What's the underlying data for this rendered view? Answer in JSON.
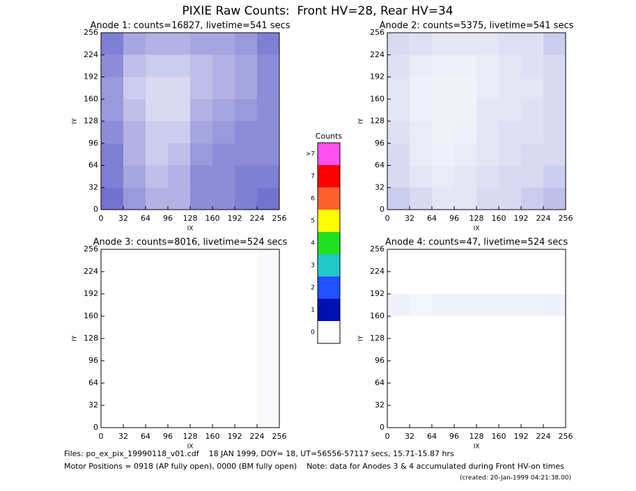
{
  "title": "PIXIE Raw Counts:  Front HV=28, Rear HV=34",
  "chart_data": [
    {
      "type": "heatmap",
      "title": "Anode 1: counts=16827, livetime=541 secs",
      "x_label": "IX",
      "y_label": "IY",
      "color": "#0000a8",
      "xlim": [
        0,
        256
      ],
      "ylim": [
        0,
        256
      ],
      "xticks": [
        0,
        32,
        64,
        96,
        128,
        160,
        192,
        224,
        256
      ],
      "yticks": [
        0,
        32,
        64,
        96,
        128,
        160,
        192,
        224,
        256
      ],
      "z": [
        [
          0.55,
          0.4,
          0.3,
          0.3,
          0.45,
          0.45,
          0.5,
          0.55
        ],
        [
          0.5,
          0.35,
          0.25,
          0.3,
          0.45,
          0.45,
          0.5,
          0.5
        ],
        [
          0.5,
          0.3,
          0.2,
          0.25,
          0.4,
          0.45,
          0.45,
          0.45
        ],
        [
          0.45,
          0.3,
          0.2,
          0.2,
          0.35,
          0.4,
          0.45,
          0.45
        ],
        [
          0.4,
          0.25,
          0.15,
          0.15,
          0.3,
          0.35,
          0.4,
          0.45
        ],
        [
          0.4,
          0.2,
          0.15,
          0.15,
          0.25,
          0.3,
          0.35,
          0.45
        ],
        [
          0.45,
          0.25,
          0.2,
          0.2,
          0.25,
          0.3,
          0.35,
          0.45
        ],
        [
          0.5,
          0.35,
          0.3,
          0.3,
          0.35,
          0.35,
          0.4,
          0.5
        ]
      ]
    },
    {
      "type": "heatmap",
      "title": "Anode 2: counts=5375, livetime=541 secs",
      "x_label": "IX",
      "y_label": "IY",
      "color": "#0000a8",
      "xlim": [
        0,
        256
      ],
      "ylim": [
        0,
        256
      ],
      "xticks": [
        0,
        32,
        64,
        96,
        128,
        160,
        192,
        224,
        256
      ],
      "yticks": [
        0,
        32,
        64,
        96,
        128,
        160,
        192,
        224,
        256
      ],
      "z": [
        [
          0.2,
          0.15,
          0.1,
          0.1,
          0.15,
          0.15,
          0.2,
          0.25
        ],
        [
          0.15,
          0.1,
          0.08,
          0.1,
          0.12,
          0.15,
          0.15,
          0.2
        ],
        [
          0.15,
          0.08,
          0.06,
          0.08,
          0.1,
          0.12,
          0.15,
          0.15
        ],
        [
          0.12,
          0.08,
          0.05,
          0.06,
          0.1,
          0.12,
          0.12,
          0.15
        ],
        [
          0.1,
          0.06,
          0.05,
          0.05,
          0.1,
          0.1,
          0.12,
          0.15
        ],
        [
          0.1,
          0.06,
          0.05,
          0.05,
          0.08,
          0.1,
          0.1,
          0.15
        ],
        [
          0.12,
          0.08,
          0.06,
          0.06,
          0.08,
          0.1,
          0.12,
          0.15
        ],
        [
          0.15,
          0.12,
          0.1,
          0.1,
          0.1,
          0.12,
          0.12,
          0.2
        ]
      ]
    },
    {
      "type": "heatmap",
      "title": "Anode 3: counts=8016, livetime=524 secs",
      "x_label": "IX",
      "y_label": "IY",
      "color": "#0000a8",
      "xlim": [
        0,
        256
      ],
      "ylim": [
        0,
        256
      ],
      "xticks": [
        0,
        32,
        64,
        96,
        128,
        160,
        192,
        224,
        256
      ],
      "yticks": [
        0,
        32,
        64,
        96,
        128,
        160,
        192,
        224,
        256
      ],
      "z": [
        [
          0,
          0,
          0,
          0,
          0,
          0,
          0,
          0.02
        ],
        [
          0,
          0,
          0,
          0,
          0,
          0,
          0,
          0.02
        ],
        [
          0,
          0,
          0,
          0,
          0,
          0,
          0,
          0.02
        ],
        [
          0,
          0,
          0,
          0,
          0,
          0,
          0,
          0.02
        ],
        [
          0,
          0,
          0,
          0,
          0,
          0,
          0,
          0.02
        ],
        [
          0,
          0,
          0,
          0,
          0,
          0,
          0,
          0.02
        ],
        [
          0,
          0,
          0,
          0,
          0,
          0,
          0,
          0.02
        ],
        [
          0,
          0,
          0,
          0,
          0,
          0,
          0,
          0.02
        ]
      ]
    },
    {
      "type": "heatmap",
      "title": "Anode 4: counts=47, livetime=524 secs",
      "x_label": "IX",
      "y_label": "IY",
      "color": "#0000a8",
      "xlim": [
        0,
        256
      ],
      "ylim": [
        0,
        256
      ],
      "xticks": [
        0,
        32,
        64,
        96,
        128,
        160,
        192,
        224,
        256
      ],
      "yticks": [
        0,
        32,
        64,
        96,
        128,
        160,
        192,
        224,
        256
      ],
      "z": [
        [
          0,
          0,
          0,
          0,
          0,
          0,
          0,
          0
        ],
        [
          0,
          0,
          0,
          0,
          0,
          0,
          0,
          0
        ],
        [
          0,
          0,
          0,
          0,
          0,
          0,
          0,
          0
        ],
        [
          0,
          0,
          0,
          0,
          0,
          0,
          0,
          0
        ],
        [
          0,
          0,
          0,
          0,
          0,
          0,
          0,
          0
        ],
        [
          0.06,
          0.04,
          0.05,
          0.05,
          0.05,
          0.05,
          0.05,
          0.06
        ],
        [
          0,
          0,
          0,
          0,
          0,
          0,
          0,
          0
        ],
        [
          0,
          0,
          0,
          0,
          0,
          0,
          0,
          0
        ]
      ]
    },
    {
      "type": "colorbar",
      "title": "Counts",
      "categories": [
        "0",
        "1",
        "2",
        "3",
        "4",
        "5",
        "6",
        "7",
        ">7"
      ],
      "colors": [
        "#ffffff",
        "#0010b0",
        "#2050ff",
        "#20c8c8",
        "#20e020",
        "#ffff00",
        "#ff6030",
        "#ff0000",
        "#ff50f0"
      ]
    }
  ],
  "footer": [
    "Files: po_ex_pix_19990118_v01.cdf    18 JAN 1999, DOY= 18, UT=56556-57117 secs, 15.71-15.87 hrs",
    "Motor Positions = 0918 (AP fully open), 0000 (BM fully open)    Note: data for Anodes 3 & 4 accumulated during Front HV-on times",
    "(created: 20-Jan-1999 04:21:38.00)"
  ]
}
